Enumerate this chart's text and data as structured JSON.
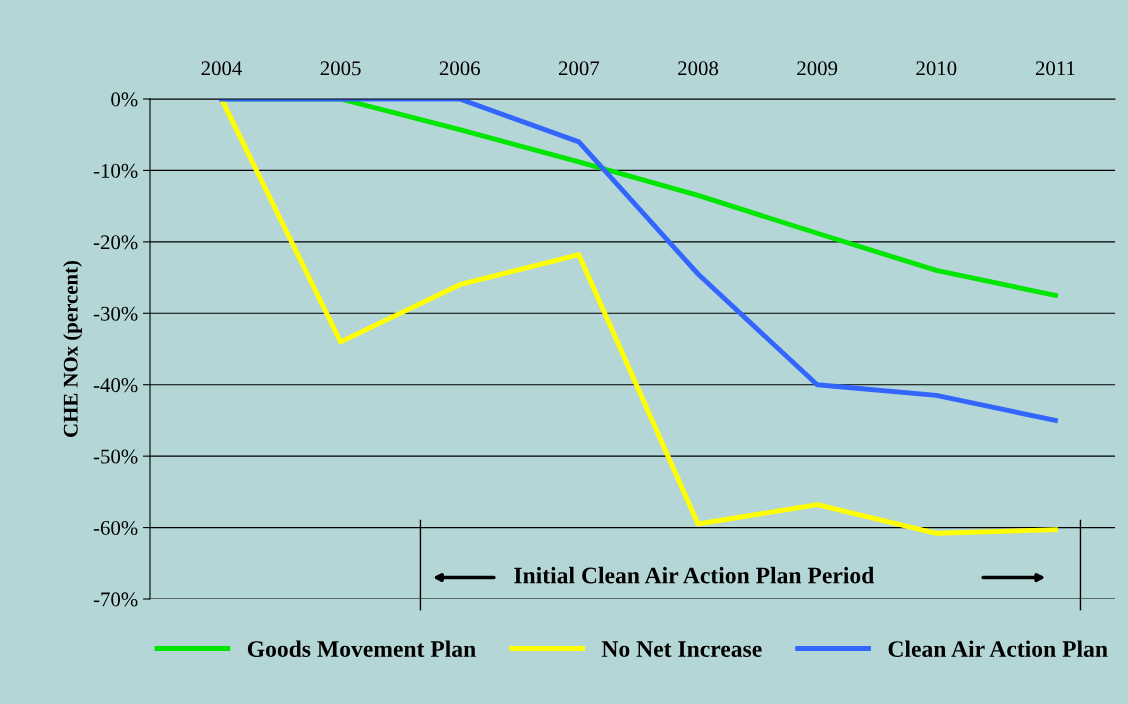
{
  "chart_data": {
    "type": "line",
    "ylabel": "CHE NOx (percent)",
    "categories": [
      "2004",
      "2005",
      "2006",
      "2007",
      "2008",
      "2009",
      "2010",
      "2011"
    ],
    "series": [
      {
        "name": "Goods Movement Plan",
        "color": "#00e600",
        "values": [
          0,
          0,
          -4.3,
          -8.8,
          -13.5,
          -18.8,
          -24,
          -27.5
        ]
      },
      {
        "name": "No Net Increase",
        "color": "#ffff00",
        "values": [
          0,
          -34,
          -26,
          -21.8,
          -59.5,
          -56.8,
          -60.8,
          -60.3
        ]
      },
      {
        "name": "Clean Air Action Plan",
        "color": "#3366ff",
        "values": [
          0,
          0,
          0,
          -6,
          -24.5,
          -40,
          -41.5,
          -45
        ]
      }
    ],
    "ylim": [
      -70,
      0
    ],
    "yticks": [
      {
        "value": 0,
        "label": "0%"
      },
      {
        "value": -10,
        "label": "-10%"
      },
      {
        "value": -20,
        "label": "-20%"
      },
      {
        "value": -30,
        "label": "-30%"
      },
      {
        "value": -40,
        "label": "-40%"
      },
      {
        "value": -50,
        "label": "-50%"
      },
      {
        "value": -60,
        "label": "-60%"
      },
      {
        "value": -70,
        "label": "-70%"
      }
    ],
    "grid": "y",
    "legend": "bottom",
    "marker": "none",
    "line_style": "solid",
    "annotations": [
      "Initial Clean Air Action Plan Period"
    ]
  }
}
